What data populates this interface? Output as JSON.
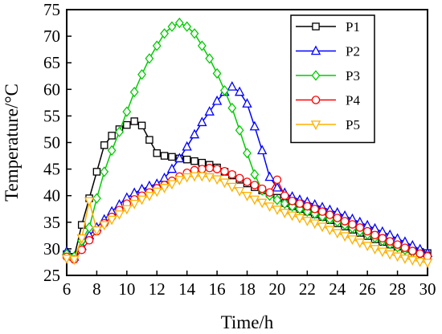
{
  "chart_data": {
    "type": "line",
    "title": "",
    "xlabel": "Time/h",
    "ylabel": "Temperature/°C",
    "xlim": [
      6,
      30
    ],
    "ylim": [
      25,
      75
    ],
    "xticks": [
      6,
      8,
      10,
      12,
      14,
      16,
      18,
      20,
      22,
      24,
      26,
      28,
      30
    ],
    "yticks": [
      25,
      30,
      35,
      40,
      45,
      50,
      55,
      60,
      65,
      70,
      75
    ],
    "grid": false,
    "legend_position": "top-right",
    "series": [
      {
        "name": "P1",
        "color": "#000000",
        "marker": "square",
        "x": [
          6.0,
          6.5,
          7.0,
          7.5,
          8.0,
          8.5,
          9.0,
          9.5,
          10.0,
          10.5,
          11.0,
          11.5,
          12.0,
          12.5,
          13.0,
          13.5,
          14.0,
          14.5,
          15.0,
          15.5,
          16.0,
          16.5,
          17.0,
          17.5,
          18.0,
          18.5,
          19.0,
          19.5,
          20.0,
          20.5,
          21.0,
          21.5,
          22.0,
          22.5,
          23.0,
          23.5,
          24.0,
          24.5,
          25.0,
          25.5,
          26.0,
          26.5,
          27.0,
          27.5,
          28.0,
          28.5,
          29.0,
          29.5,
          30.0
        ],
        "y": [
          29.0,
          28.5,
          34.5,
          39.5,
          44.5,
          49.5,
          51.3,
          52.5,
          53.3,
          54.0,
          53.2,
          50.5,
          48.0,
          47.5,
          47.3,
          47.0,
          46.8,
          46.5,
          46.2,
          45.8,
          45.3,
          44.5,
          43.8,
          43.0,
          42.3,
          41.6,
          41.0,
          40.4,
          39.6,
          38.6,
          38.0,
          37.5,
          37.0,
          36.5,
          36.0,
          35.4,
          34.8,
          34.2,
          33.6,
          33.0,
          32.4,
          31.8,
          31.3,
          30.8,
          30.4,
          30.0,
          29.7,
          29.4,
          29.2
        ]
      },
      {
        "name": "P2",
        "color": "#0000ff",
        "marker": "triangle-up",
        "x": [
          6.0,
          6.5,
          7.0,
          7.5,
          8.0,
          8.5,
          9.0,
          9.5,
          10.0,
          10.5,
          11.0,
          11.5,
          12.0,
          12.5,
          13.0,
          13.5,
          14.0,
          14.5,
          15.0,
          15.5,
          16.0,
          16.5,
          17.0,
          17.5,
          18.0,
          18.5,
          19.0,
          19.5,
          20.0,
          20.5,
          21.0,
          21.5,
          22.0,
          22.5,
          23.0,
          23.5,
          24.0,
          24.5,
          25.0,
          25.5,
          26.0,
          26.5,
          27.0,
          27.5,
          28.0,
          28.5,
          29.0,
          29.5,
          30.0
        ],
        "y": [
          29.5,
          28.5,
          30.5,
          32.5,
          34.0,
          35.5,
          37.0,
          38.3,
          39.6,
          40.5,
          41.2,
          41.8,
          42.2,
          43.3,
          45.0,
          47.0,
          49.2,
          51.5,
          53.8,
          55.8,
          57.8,
          59.5,
          60.5,
          59.5,
          57.3,
          53.0,
          48.5,
          43.5,
          41.5,
          40.5,
          39.8,
          39.2,
          38.8,
          38.3,
          37.8,
          37.3,
          36.8,
          36.2,
          35.6,
          35.0,
          34.4,
          33.8,
          33.2,
          32.6,
          31.9,
          31.3,
          30.6,
          29.9,
          29.2
        ]
      },
      {
        "name": "P3",
        "color": "#00cc00",
        "marker": "diamond",
        "x": [
          6.0,
          6.5,
          7.0,
          7.5,
          8.0,
          8.5,
          9.0,
          9.5,
          10.0,
          10.5,
          11.0,
          11.5,
          12.0,
          12.5,
          13.0,
          13.5,
          14.0,
          14.5,
          15.0,
          15.5,
          16.0,
          16.5,
          17.0,
          17.5,
          18.0,
          18.5,
          19.0,
          19.5,
          20.0,
          20.5,
          21.0,
          21.5,
          22.0,
          22.5,
          23.0,
          23.5,
          24.0,
          24.5,
          25.0,
          25.5,
          26.0,
          26.5,
          27.0,
          27.5,
          28.0,
          28.5,
          29.0,
          29.5,
          30.0
        ],
        "y": [
          29.0,
          28.5,
          31.5,
          34.0,
          39.5,
          44.5,
          48.5,
          52.0,
          55.8,
          59.5,
          62.8,
          65.8,
          68.2,
          70.5,
          71.8,
          72.5,
          71.8,
          70.5,
          68.2,
          65.8,
          63.0,
          59.8,
          56.5,
          52.3,
          48.0,
          44.0,
          41.0,
          40.0,
          39.2,
          38.5,
          38.0,
          37.5,
          37.0,
          36.6,
          36.1,
          35.6,
          35.1,
          34.5,
          33.9,
          33.3,
          32.7,
          32.1,
          31.5,
          30.9,
          30.3,
          29.8,
          29.3,
          28.9,
          28.6
        ]
      },
      {
        "name": "P4",
        "color": "#ff0000",
        "marker": "circle",
        "x": [
          6.0,
          6.5,
          7.0,
          7.5,
          8.0,
          8.5,
          9.0,
          9.5,
          10.0,
          10.5,
          11.0,
          11.5,
          12.0,
          12.5,
          13.0,
          13.5,
          14.0,
          14.5,
          15.0,
          15.5,
          16.0,
          16.5,
          17.0,
          17.5,
          18.0,
          18.5,
          19.0,
          19.5,
          20.0,
          20.5,
          21.0,
          21.5,
          22.0,
          22.5,
          23.0,
          23.5,
          24.0,
          24.5,
          25.0,
          25.5,
          26.0,
          26.5,
          27.0,
          27.5,
          28.0,
          28.5,
          29.0,
          29.5,
          30.0
        ],
        "y": [
          28.5,
          28.0,
          29.8,
          31.6,
          33.3,
          34.8,
          36.0,
          37.3,
          38.5,
          39.3,
          40.0,
          40.6,
          41.4,
          42.0,
          42.8,
          43.6,
          44.3,
          44.8,
          45.0,
          45.2,
          45.0,
          44.6,
          44.0,
          43.3,
          42.6,
          42.0,
          41.3,
          40.6,
          43.0,
          40.0,
          39.0,
          38.5,
          38.0,
          37.5,
          37.0,
          36.4,
          35.8,
          35.2,
          34.6,
          34.0,
          33.3,
          32.6,
          32.0,
          31.4,
          30.8,
          30.2,
          29.6,
          29.1,
          28.6
        ]
      },
      {
        "name": "P5",
        "color": "#ffb000",
        "marker": "triangle-down",
        "x": [
          6.0,
          6.5,
          7.0,
          7.5,
          8.0,
          8.5,
          9.0,
          9.5,
          10.0,
          10.5,
          11.0,
          11.5,
          12.0,
          12.5,
          13.0,
          13.5,
          14.0,
          14.5,
          15.0,
          15.5,
          16.0,
          16.5,
          17.0,
          17.5,
          18.0,
          18.5,
          19.0,
          19.5,
          20.0,
          20.5,
          21.0,
          21.5,
          22.0,
          22.5,
          23.0,
          23.5,
          24.0,
          24.5,
          25.0,
          25.5,
          26.0,
          26.5,
          27.0,
          27.5,
          28.0,
          28.5,
          29.0,
          29.5,
          30.0
        ],
        "y": [
          28.2,
          28.0,
          32.0,
          39.0,
          33.5,
          34.5,
          35.5,
          36.5,
          37.5,
          38.5,
          39.3,
          40.0,
          40.8,
          41.5,
          42.2,
          43.0,
          43.5,
          43.7,
          43.7,
          43.5,
          43.1,
          42.5,
          41.7,
          40.9,
          40.0,
          39.3,
          38.7,
          38.0,
          37.4,
          36.8,
          36.3,
          35.8,
          35.3,
          34.8,
          34.2,
          33.6,
          33.0,
          32.4,
          31.8,
          31.2,
          30.6,
          30.0,
          29.5,
          29.0,
          28.6,
          28.2,
          27.9,
          27.6,
          27.4
        ]
      }
    ]
  }
}
